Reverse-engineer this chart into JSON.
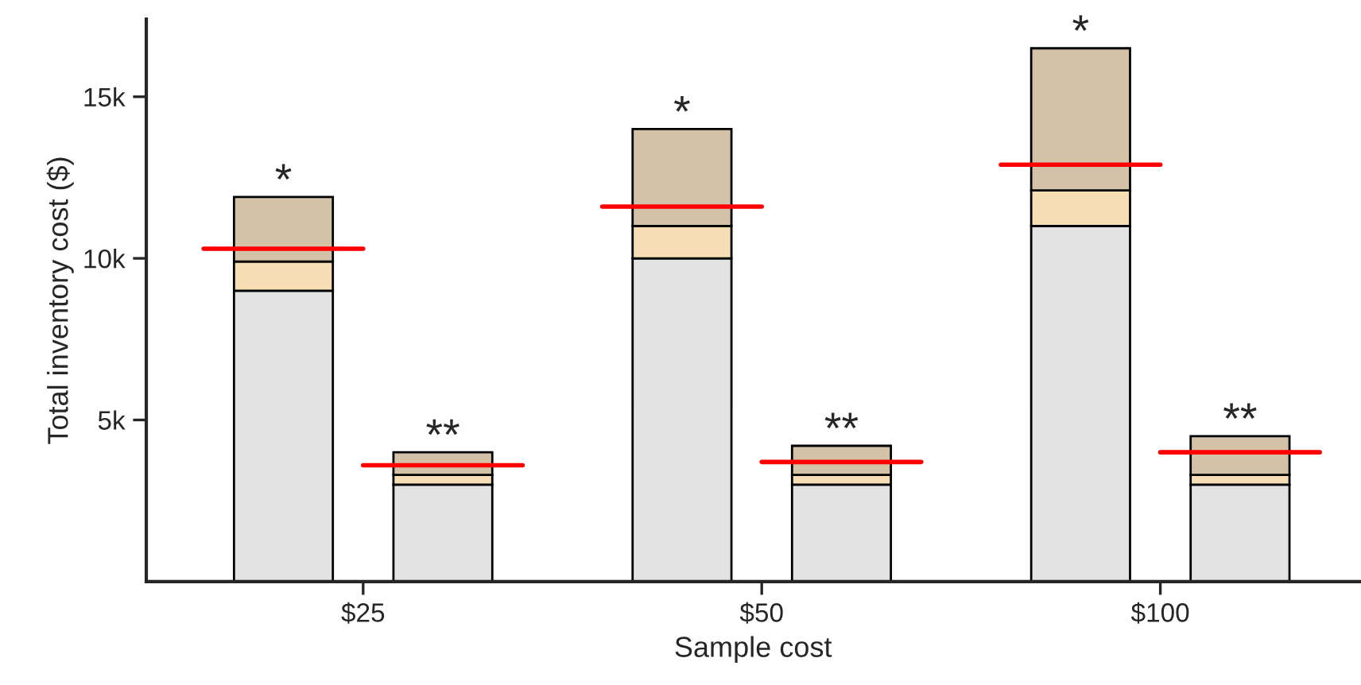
{
  "chart_data": {
    "type": "bar",
    "stacked": true,
    "xlabel": "Sample cost",
    "ylabel": "Total inventory cost ($)",
    "categories": [
      null,
      null,
      "$25",
      null,
      null,
      null,
      null,
      "$50",
      null,
      null,
      null,
      null,
      "$100",
      null,
      null
    ],
    "ylim": [
      0,
      17400
    ],
    "yticks": [
      {
        "value": 5000,
        "label": "5k"
      },
      {
        "value": 10000,
        "label": "10k"
      },
      {
        "value": 15000,
        "label": "15k"
      }
    ],
    "series": [
      {
        "type": "bar",
        "color": "#e3e3e3",
        "values": [
          null,
          9000,
          null,
          3000,
          null,
          null,
          10000,
          null,
          3000,
          null,
          null,
          11000,
          null,
          3000,
          null
        ]
      },
      {
        "type": "bar",
        "color": "#f5deb3",
        "values": [
          null,
          900,
          null,
          300,
          null,
          null,
          1000,
          null,
          300,
          null,
          null,
          1100,
          null,
          300,
          null
        ]
      },
      {
        "type": "bar",
        "color": "#d3c2a7",
        "values": [
          null,
          2000,
          null,
          700,
          null,
          null,
          3000,
          null,
          900,
          null,
          null,
          4400,
          null,
          1200,
          null
        ],
        "value_labels": [
          null,
          "*",
          null,
          "**",
          null,
          null,
          "*",
          null,
          "**",
          null,
          null,
          "*",
          null,
          "**",
          null
        ]
      },
      {
        "type": "line",
        "color": "#ff0000",
        "values": [
          10300,
          10300,
          10300,
          null,
          null,
          null,
          null,
          null,
          null,
          null,
          null,
          null,
          null,
          null,
          null
        ]
      },
      {
        "type": "line",
        "color": "#ff0000",
        "values": [
          null,
          null,
          3600,
          3600,
          3600,
          null,
          null,
          null,
          null,
          null,
          null,
          null,
          null,
          null,
          null
        ]
      },
      {
        "type": "line",
        "color": "#ff0000",
        "values": [
          null,
          null,
          null,
          null,
          null,
          11600,
          11600,
          11600,
          null,
          null,
          null,
          null,
          null,
          null,
          null
        ]
      },
      {
        "type": "line",
        "color": "#ff0000",
        "values": [
          null,
          null,
          null,
          null,
          null,
          null,
          null,
          3700,
          3700,
          3700,
          null,
          null,
          null,
          null,
          null
        ]
      },
      {
        "type": "line",
        "color": "#ff0000",
        "values": [
          null,
          null,
          null,
          null,
          null,
          null,
          null,
          null,
          null,
          null,
          12900,
          12900,
          12900,
          null,
          null
        ]
      },
      {
        "type": "line",
        "color": "#ff0000",
        "values": [
          null,
          null,
          null,
          null,
          null,
          null,
          null,
          null,
          null,
          null,
          null,
          null,
          4000,
          4000,
          4000
        ]
      }
    ]
  }
}
